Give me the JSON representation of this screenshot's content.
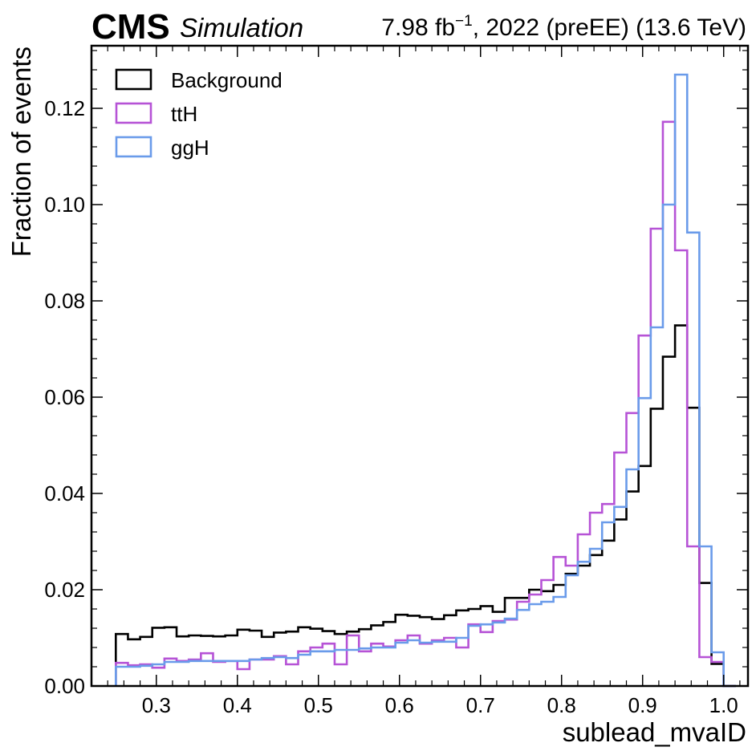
{
  "header": {
    "experiment": "CMS",
    "tag": "Simulation",
    "lumi_prefix": "7.98 fb",
    "lumi_exp": "−1",
    "lumi_suffix": ", 2022 (preEE) (13.6 TeV)"
  },
  "chart_data": {
    "type": "histogram-step",
    "title": "",
    "xlabel": "sublead_mvaID",
    "ylabel": "Fraction of events",
    "xlim": [
      0.22,
      1.03
    ],
    "ylim": [
      0.0,
      0.133
    ],
    "x_ticks": [
      "0.3",
      "0.4",
      "0.5",
      "0.6",
      "0.7",
      "0.8",
      "0.9",
      "1.0"
    ],
    "y_ticks": [
      "0.00",
      "0.02",
      "0.04",
      "0.06",
      "0.08",
      "0.10",
      "0.12"
    ],
    "legend_position": "top-left",
    "bin_start": 0.25,
    "bin_width": 0.015,
    "series": [
      {
        "name": "Background",
        "color": "#000000",
        "values": [
          0.0108,
          0.0097,
          0.0102,
          0.0121,
          0.0122,
          0.0103,
          0.0105,
          0.0104,
          0.0103,
          0.0105,
          0.0117,
          0.0115,
          0.0102,
          0.0111,
          0.0113,
          0.0122,
          0.0119,
          0.0114,
          0.0108,
          0.0113,
          0.0118,
          0.0126,
          0.0133,
          0.0148,
          0.0146,
          0.0143,
          0.0139,
          0.0147,
          0.0157,
          0.016,
          0.0166,
          0.0154,
          0.0183,
          0.0183,
          0.02,
          0.0197,
          0.021,
          0.0233,
          0.025,
          0.0272,
          0.0302,
          0.0346,
          0.0404,
          0.0457,
          0.0576,
          0.0684,
          0.0749,
          0.0578,
          0.0214,
          0.0046,
          0.0
        ]
      },
      {
        "name": "ttH",
        "color": "#b653d6",
        "values": [
          0.0048,
          0.0043,
          0.0045,
          0.0038,
          0.0057,
          0.0052,
          0.0055,
          0.0068,
          0.005,
          0.0052,
          0.0035,
          0.0055,
          0.0055,
          0.0062,
          0.0045,
          0.0072,
          0.008,
          0.0088,
          0.0045,
          0.0105,
          0.0072,
          0.0088,
          0.0082,
          0.0095,
          0.0105,
          0.0088,
          0.0095,
          0.01,
          0.008,
          0.0128,
          0.0112,
          0.0135,
          0.0138,
          0.0175,
          0.019,
          0.022,
          0.0268,
          0.025,
          0.0315,
          0.036,
          0.0378,
          0.0485,
          0.0567,
          0.0728,
          0.095,
          0.1172,
          0.0905,
          0.029,
          0.006,
          0.005,
          0.0
        ]
      },
      {
        "name": "ggH",
        "color": "#6a9bea",
        "values": [
          0.004,
          0.004,
          0.0042,
          0.0045,
          0.005,
          0.005,
          0.0052,
          0.0052,
          0.0052,
          0.0052,
          0.0052,
          0.0055,
          0.0058,
          0.006,
          0.0058,
          0.0065,
          0.0072,
          0.0072,
          0.0075,
          0.0075,
          0.0078,
          0.008,
          0.008,
          0.009,
          0.0095,
          0.009,
          0.0092,
          0.0092,
          0.01,
          0.0125,
          0.0128,
          0.0132,
          0.014,
          0.0158,
          0.017,
          0.0175,
          0.0185,
          0.023,
          0.0258,
          0.0285,
          0.034,
          0.0372,
          0.045,
          0.0598,
          0.0745,
          0.1,
          0.127,
          0.0942,
          0.029,
          0.007,
          0.0
        ]
      }
    ]
  }
}
